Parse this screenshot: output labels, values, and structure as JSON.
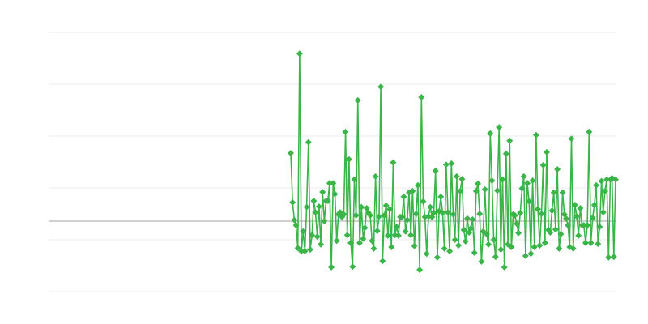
{
  "chart_data": {
    "type": "line",
    "title": "",
    "xlabel": "",
    "ylabel": "",
    "ylim": [
      -1.36,
      3.64
    ],
    "gridlines": [
      3.64,
      2.64,
      1.64,
      0.64,
      -0.36,
      -1.36
    ],
    "zero_line": 0,
    "grid": true,
    "marker": "diamond",
    "color": "#3bb54a",
    "grid_color": "#ebebeb",
    "zero_line_color": "#a0a0a0",
    "series": [
      {
        "values": [
          1.31,
          0.36,
          0.02,
          -0.08,
          -0.52,
          3.23,
          -0.58,
          -0.2,
          -0.58,
          0.27,
          1.52,
          -0.55,
          -0.27,
          0.39,
          0.17,
          -0.3,
          0.28,
          -0.45,
          0.56,
          0,
          0.39,
          0.39,
          0.73,
          -0.89,
          0.73,
          0.52,
          -0.38,
          0.13,
          0.17,
          0.08,
          0.13,
          1.72,
          -0.27,
          1.19,
          -0.42,
          -0.88,
          0.8,
          0.11,
          2.33,
          -0.42,
          0.27,
          -0.34,
          -0.13,
          0.25,
          0.16,
          0.11,
          -0.38,
          -0.53,
          0.86,
          -0.19,
          0.09,
          2.59,
          -0.77,
          0.11,
          0.3,
          -0.28,
          0.23,
          -0.5,
          1.13,
          -0.27,
          -0.11,
          -0.28,
          0.08,
          0.08,
          0.47,
          -0.2,
          0.02,
          0.55,
          -0.27,
          0.58,
          -0.48,
          0.14,
          0.69,
          -0.94,
          2.39,
          0.38,
          0.08,
          -0.63,
          0.09,
          0.27,
          0.08,
          0.16,
          0.97,
          -0.7,
          0.19,
          0.47,
          0.16,
          -0.53,
          1.09,
          0.17,
          -0.58,
          1.11,
          0.13,
          -0.36,
          0.86,
          -0.47,
          0.58,
          0.81,
          -0.17,
          -0.39,
          0.05,
          -0.22,
          -0.14,
          0.03,
          -0.61,
          0.58,
          0.72,
          0.14,
          -0.78,
          -0.2,
          0.61,
          -0.25,
          -0.45,
          1.69,
          0.78,
          -0.36,
          -0.69,
          0.59,
          1.81,
          -0.55,
          0.8,
          -0.89,
          1.3,
          -0.45,
          1.55,
          -0.5,
          0.13,
          0.11,
          -0.05,
          -0.23,
          0.16,
          0.63,
          0.86,
          -0.67,
          0.73,
          0.38,
          -0.63,
          0.78,
          -0.5,
          1.66,
          0.23,
          -0.47,
          0.14,
          1.08,
          -0.42,
          1.33,
          -0.17,
          -0.22,
          0.2,
          0.55,
          -0.16,
          1.0,
          -0.53,
          -0.25,
          0.55,
          0.13,
          0.05,
          -0.08,
          -0.5,
          1.59,
          -0.53,
          0.31,
          0.09,
          -0.28,
          0.25,
          -0.08,
          -0.08,
          -0.42,
          -0.08,
          1.72,
          -0.42,
          0.06,
          0.31,
          0.69,
          -0.44,
          -0.11,
          0.77,
          0.17,
          0.58,
          0.8,
          -0.7,
          0.8,
          0.83,
          -0.69,
          0.8
        ]
      }
    ]
  }
}
